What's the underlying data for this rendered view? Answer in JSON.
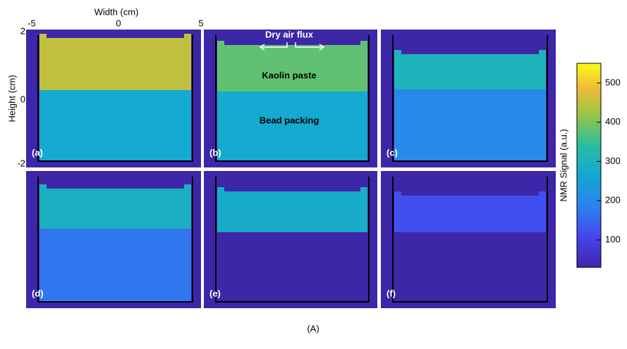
{
  "figure": {
    "x_label": "Width (cm)",
    "xticks": [
      -5,
      0,
      5
    ],
    "y_label": "Height (cm)",
    "yticks": [
      2,
      0,
      -2
    ],
    "colorbar": {
      "label": "NMR Signal (a.u.)",
      "lim": [
        30,
        550
      ],
      "ticks": [
        100,
        200,
        300,
        400,
        500
      ]
    },
    "background_signal": 30,
    "panels": [
      {
        "label": "(a)",
        "paste_signal": 450,
        "bead_signal": 270
      },
      {
        "label": "(b)",
        "paste_signal": 380,
        "bead_signal": 270
      },
      {
        "label": "(c)",
        "paste_signal": 300,
        "bead_signal": 200
      },
      {
        "label": "(d)",
        "paste_signal": 290,
        "bead_signal": 170
      },
      {
        "label": "(e)",
        "paste_signal": 280,
        "bead_signal": 30
      },
      {
        "label": "(f)",
        "paste_signal": 120,
        "bead_signal": 30
      }
    ],
    "annotations": {
      "flux": "Dry air flux",
      "paste": "Kaolin paste",
      "beads": "Bead packing"
    },
    "caption": "(A)"
  }
}
